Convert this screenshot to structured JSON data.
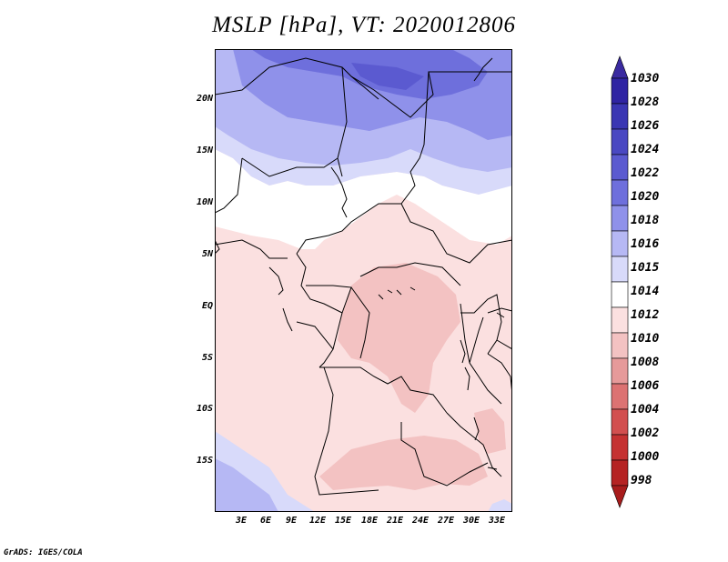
{
  "title": "MSLP [hPa], VT: 2020012806",
  "credit": "GrADS: IGES/COLA",
  "lat_labels": [
    "20N",
    "15N",
    "10N",
    "5N",
    "EQ",
    "5S",
    "10S",
    "15S"
  ],
  "lon_labels": [
    "3E",
    "6E",
    "9E",
    "12E",
    "15E",
    "18E",
    "21E",
    "24E",
    "27E",
    "30E",
    "33E"
  ],
  "colorbar": {
    "levels": [
      "1030",
      "1028",
      "1026",
      "1024",
      "1022",
      "1020",
      "1018",
      "1016",
      "1015",
      "1014",
      "1012",
      "1010",
      "1008",
      "1006",
      "1004",
      "1002",
      "1000",
      "998"
    ],
    "colors": [
      "#3a2aa0",
      "#2f24a3",
      "#3a36b3",
      "#4a48c2",
      "#5b5ad0",
      "#6e6fdc",
      "#8f91ea",
      "#b6b8f4",
      "#d8dafa",
      "#ffffff",
      "#fbe0e0",
      "#f3c2c2",
      "#e69a9a",
      "#dc7272",
      "#d24f4f",
      "#c53232",
      "#b52323",
      "#a81c1c"
    ]
  },
  "map_colors": {
    "deep_blue": "#6e6fdc",
    "mid_blue": "#8f91ea",
    "light_blue": "#b6b8f4",
    "pale_blue": "#d8dafa",
    "white": "#ffffff",
    "pale_pink": "#fbe0e0",
    "pink": "#f3c2c2"
  }
}
